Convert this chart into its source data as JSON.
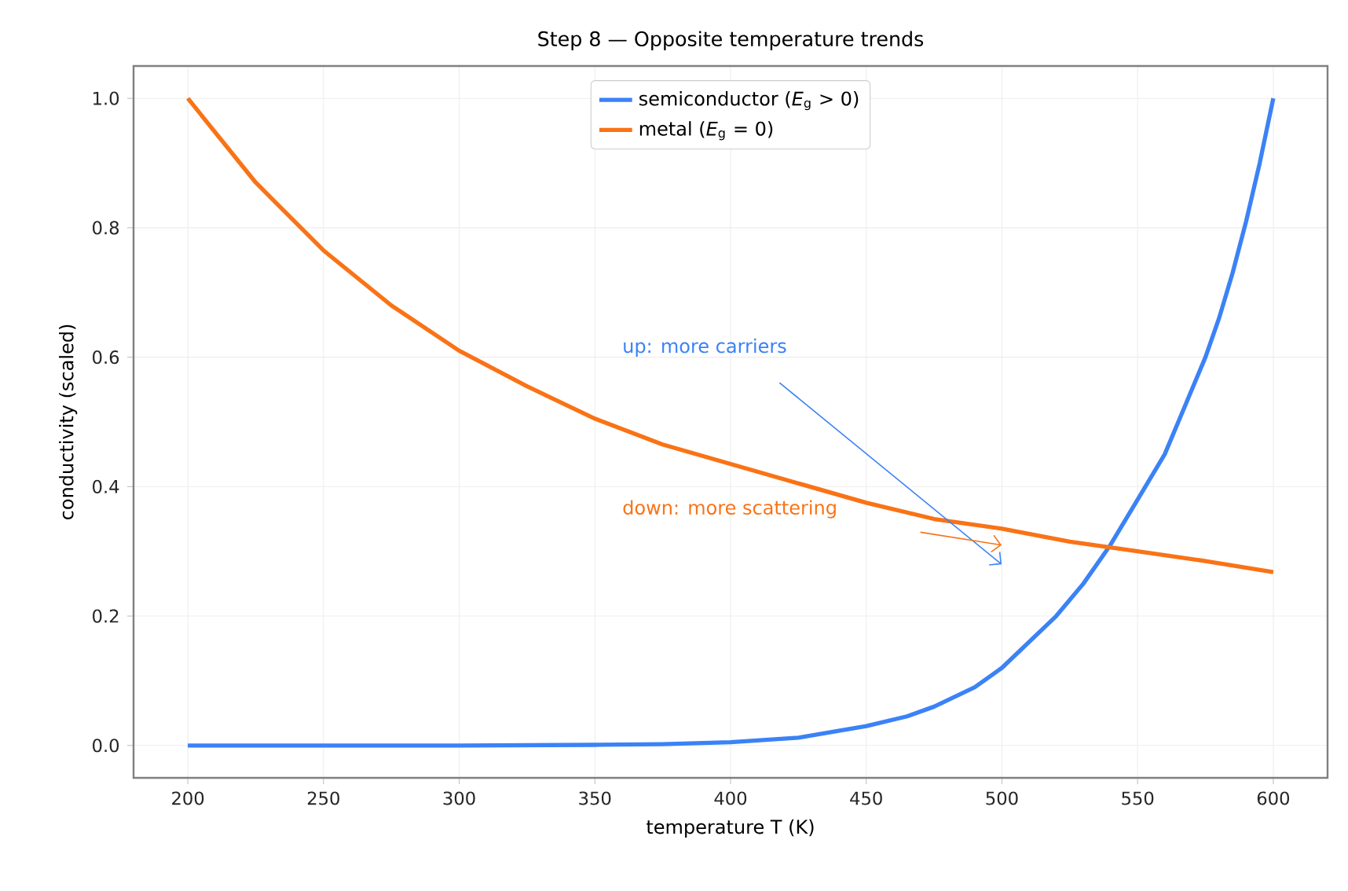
{
  "chart_data": {
    "type": "line",
    "title": "Step 8 — Opposite temperature trends",
    "xlabel": "temperature T (K)",
    "ylabel": "conductivity (scaled)",
    "xlim": [
      180,
      620
    ],
    "ylim": [
      -0.05,
      1.05
    ],
    "xticks": [
      200,
      250,
      300,
      350,
      400,
      450,
      500,
      550,
      600
    ],
    "yticks": [
      {
        "value": 0,
        "label": "0.0"
      },
      0.2,
      0.4,
      0.6,
      0.8,
      {
        "value": 1,
        "label": "1.0"
      }
    ],
    "grid": true,
    "legend": "top",
    "line_style": "solid",
    "marker": "none",
    "series": [
      {
        "name": "semiconductor (*E*$_{g}$ > 0)",
        "color": "#3b82f6",
        "x": [
          200,
          250,
          300,
          350,
          375,
          400,
          425,
          450,
          465,
          475,
          490,
          500,
          510,
          520,
          530,
          540,
          550,
          560,
          565,
          570,
          575,
          580,
          585,
          590,
          595,
          600
        ],
        "values": [
          0.0,
          0.0,
          0.0,
          0.001,
          0.002,
          0.005,
          0.012,
          0.03,
          0.045,
          0.06,
          0.09,
          0.12,
          0.16,
          0.2,
          0.25,
          0.31,
          0.38,
          0.45,
          0.5,
          0.55,
          0.6,
          0.66,
          0.73,
          0.81,
          0.9,
          1.0
        ]
      },
      {
        "name": "metal (*E*$_{g}$ = 0)",
        "color": "#f97316",
        "x": [
          200,
          225,
          250,
          275,
          300,
          325,
          350,
          375,
          400,
          425,
          450,
          475,
          500,
          525,
          550,
          575,
          600
        ],
        "values": [
          1.0,
          0.87,
          0.765,
          0.68,
          0.61,
          0.555,
          0.505,
          0.465,
          0.435,
          0.405,
          0.375,
          0.35,
          0.335,
          0.315,
          0.3,
          0.285,
          0.268
        ]
      }
    ],
    "annotations": [
      "up: more carriers",
      "down: more scattering"
    ]
  }
}
